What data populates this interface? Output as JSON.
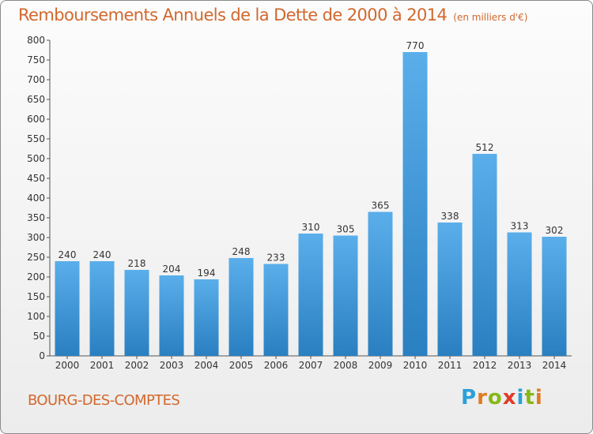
{
  "header": {
    "title": "Remboursements Annuels de la Dette de 2000 à 2014",
    "unit": "(en milliers d'€)"
  },
  "footer": {
    "city": "BOURG-DES-COMPTES",
    "logo": "Proxiti"
  },
  "colors": {
    "title": "#d2682d",
    "bar_light": "#5aaeea",
    "bar_dark": "#2a7fc1",
    "logo": [
      "#2aa0d8",
      "#e07b21",
      "#86b817",
      "#e03a2a",
      "#2aa0d8",
      "#86b817",
      "#e07b21"
    ]
  },
  "chart_data": {
    "type": "bar",
    "title": "Remboursements Annuels de la Dette de 2000 à 2014",
    "xlabel": "",
    "ylabel": "",
    "categories": [
      "2000",
      "2001",
      "2002",
      "2003",
      "2004",
      "2005",
      "2006",
      "2007",
      "2008",
      "2009",
      "2010",
      "2011",
      "2012",
      "2013",
      "2014"
    ],
    "values": [
      240,
      240,
      218,
      204,
      194,
      248,
      233,
      310,
      305,
      365,
      770,
      338,
      512,
      313,
      302
    ],
    "ylim": [
      0,
      800
    ],
    "yticks": [
      0,
      50,
      100,
      150,
      200,
      250,
      300,
      350,
      400,
      450,
      500,
      550,
      600,
      650,
      700,
      750,
      800
    ],
    "grid": false,
    "legend": "none"
  }
}
